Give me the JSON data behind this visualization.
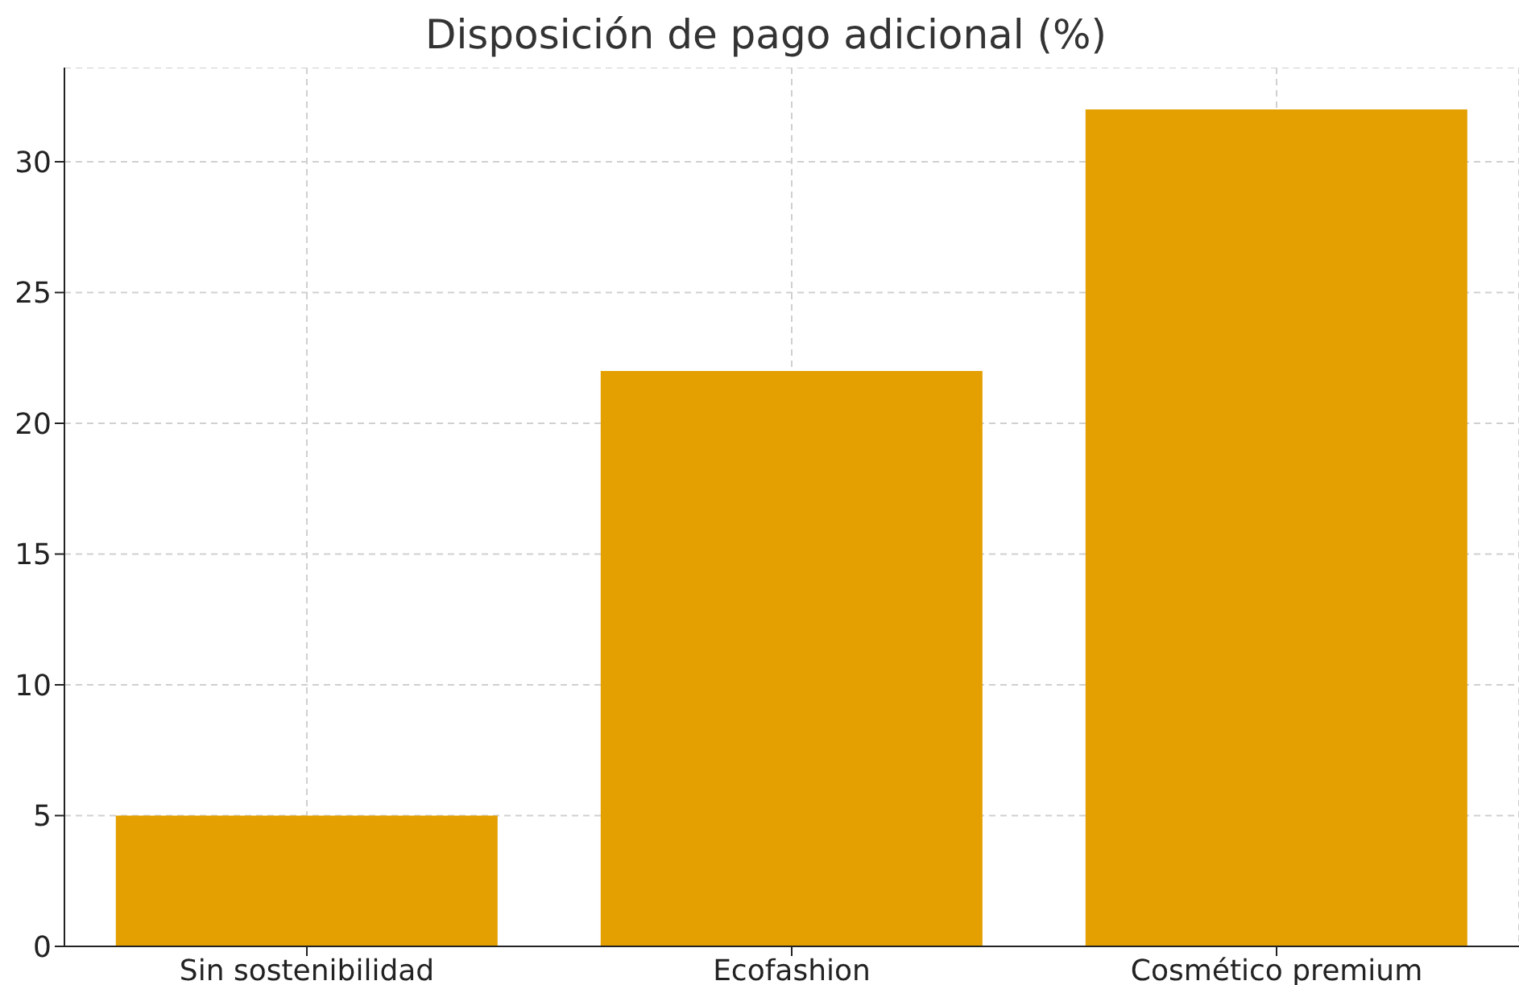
{
  "chart_data": {
    "type": "bar",
    "title": "Disposición de pago adicional (%)",
    "categories": [
      "Sin sostenibilidad",
      "Ecofashion",
      "Cosmético premium"
    ],
    "values": [
      5,
      22,
      32
    ],
    "color": "#e49f00",
    "ylim": [
      0,
      33.6
    ],
    "yticks": [
      0,
      5,
      10,
      15,
      20,
      25,
      30
    ],
    "grid": true
  }
}
